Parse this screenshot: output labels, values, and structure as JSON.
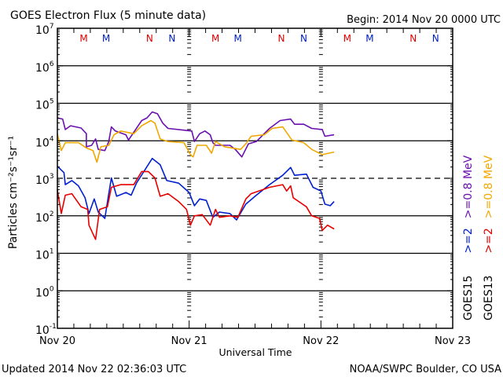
{
  "chart_data": {
    "type": "line",
    "title": "GOES Electron Flux (5 minute data)",
    "begin_label": "Begin: 2014 Nov 20 0000 UTC",
    "xlabel": "Universal Time",
    "ylabel": "Particles cm⁻²s⁻¹sr⁻¹",
    "yscale": "log",
    "ylim_log10": [
      -1,
      7
    ],
    "y_tick_base": "10",
    "y_tick_exponents": [
      "7",
      "6",
      "5",
      "4",
      "3",
      "2",
      "1",
      "0",
      "-1"
    ],
    "xlim_days": [
      0,
      3
    ],
    "x_tick_labels": [
      "Nov 20",
      "Nov 21",
      "Nov 22",
      "Nov 23"
    ],
    "dashed_threshold_log10": 3,
    "grid": "horizontal lines at each decade",
    "markers": [
      {
        "label": "M",
        "color": "#e00000",
        "day_offset": 0.2
      },
      {
        "label": "M",
        "color": "#0020c0",
        "day_offset": 0.37
      },
      {
        "label": "N",
        "color": "#e00000",
        "day_offset": 0.7
      },
      {
        "label": "N",
        "color": "#0020c0",
        "day_offset": 0.87
      }
    ],
    "legend": {
      "columns": [
        {
          "satellite": "GOES15",
          "items": [
            {
              "label": ">=2",
              "color": "#0020d0"
            },
            {
              "label": ">=0.8 MeV",
              "color": "#6a10b0"
            }
          ]
        },
        {
          "satellite": "GOES13",
          "items": [
            {
              "label": ">=2",
              "color": "#e00000"
            },
            {
              "label": ">=0.8 MeV",
              "color": "#f0a800"
            }
          ]
        }
      ],
      "placement": "right, vertical"
    },
    "series": [
      {
        "name": "GOES15 >=0.8 MeV",
        "color": "#6a10b0",
        "x_days": [
          0,
          0.04,
          0.06,
          0.1,
          0.18,
          0.22,
          0.22,
          0.26,
          0.29,
          0.31,
          0.36,
          0.39,
          0.41,
          0.44,
          0.52,
          0.54,
          0.64,
          0.68,
          0.72,
          0.76,
          0.8,
          0.84,
          1.02,
          1.04,
          1.08,
          1.12,
          1.16,
          1.18,
          1.2,
          1.31,
          1.35,
          1.4,
          1.45,
          1.51,
          1.61,
          1.69,
          1.77,
          1.8,
          1.87,
          1.93,
          2.01,
          2.03,
          2.1
        ],
        "log10_flux": [
          4.61,
          4.58,
          4.3,
          4.4,
          4.34,
          4.19,
          3.84,
          3.88,
          4.05,
          3.77,
          3.74,
          3.98,
          4.37,
          4.26,
          4.16,
          4.02,
          4.54,
          4.61,
          4.77,
          4.72,
          4.47,
          4.33,
          4.26,
          3.98,
          4.19,
          4.26,
          4.16,
          3.95,
          3.88,
          3.88,
          3.77,
          3.57,
          3.92,
          3.98,
          4.33,
          4.54,
          4.58,
          4.44,
          4.44,
          4.33,
          4.3,
          4.12,
          4.16
        ]
      },
      {
        "name": "GOES13 >=0.8 MeV",
        "color": "#f0a800",
        "x_days": [
          0,
          0.03,
          0.06,
          0.16,
          0.22,
          0.27,
          0.3,
          0.33,
          0.39,
          0.43,
          0.48,
          0.58,
          0.64,
          0.71,
          0.74,
          0.78,
          0.84,
          0.96,
          1.01,
          1.03,
          1.06,
          1.13,
          1.17,
          1.2,
          1.27,
          1.39,
          1.43,
          1.47,
          1.57,
          1.63,
          1.71,
          1.78,
          1.87,
          1.93,
          2.01,
          2.1
        ],
        "log10_flux": [
          4.19,
          3.74,
          3.95,
          3.95,
          3.81,
          3.74,
          3.43,
          3.84,
          3.88,
          4.16,
          4.26,
          4.19,
          4.4,
          4.54,
          4.47,
          4.05,
          3.98,
          3.95,
          3.63,
          3.57,
          3.88,
          3.88,
          3.67,
          3.98,
          3.84,
          3.77,
          3.92,
          4.12,
          4.16,
          4.33,
          4.37,
          4.02,
          3.95,
          3.77,
          3.63,
          3.7
        ]
      },
      {
        "name": "GOES15 >=2 MeV",
        "color": "#0020d0",
        "x_days": [
          0,
          0.05,
          0.06,
          0.11,
          0.16,
          0.21,
          0.24,
          0.28,
          0.31,
          0.36,
          0.39,
          0.41,
          0.45,
          0.52,
          0.56,
          0.6,
          0.72,
          0.78,
          0.83,
          0.92,
          1.0,
          1.04,
          1.08,
          1.13,
          1.18,
          1.23,
          1.31,
          1.36,
          1.43,
          1.51,
          1.61,
          1.71,
          1.77,
          1.8,
          1.89,
          1.94,
          2.0,
          2.03,
          2.07,
          2.1
        ],
        "log10_flux": [
          3.32,
          3.15,
          2.83,
          2.94,
          2.8,
          2.48,
          2.06,
          2.45,
          2.1,
          1.93,
          2.59,
          3.01,
          2.52,
          2.62,
          2.55,
          2.87,
          3.53,
          3.36,
          2.94,
          2.87,
          2.62,
          2.27,
          2.45,
          2.41,
          1.96,
          2.1,
          2.06,
          1.89,
          2.31,
          2.55,
          2.83,
          3.08,
          3.29,
          3.08,
          3.11,
          2.76,
          2.66,
          2.31,
          2.27,
          2.38
        ]
      },
      {
        "name": "GOES13 >=2 MeV",
        "color": "#e80000",
        "x_days": [
          0,
          0.03,
          0.06,
          0.11,
          0.18,
          0.23,
          0.24,
          0.29,
          0.32,
          0.38,
          0.41,
          0.48,
          0.58,
          0.64,
          0.69,
          0.74,
          0.78,
          0.84,
          0.92,
          0.98,
          1.01,
          1.04,
          1.1,
          1.16,
          1.2,
          1.23,
          1.31,
          1.37,
          1.43,
          1.47,
          1.61,
          1.71,
          1.74,
          1.77,
          1.79,
          1.89,
          1.93,
          1.99,
          2.01,
          2.05,
          2.1
        ],
        "log10_flux": [
          2.69,
          2.06,
          2.55,
          2.59,
          2.24,
          2.17,
          1.75,
          1.37,
          2.17,
          2.24,
          2.76,
          2.83,
          2.83,
          3.18,
          3.18,
          3.01,
          2.52,
          2.59,
          2.38,
          2.17,
          1.75,
          2.0,
          2.03,
          1.75,
          2.17,
          1.96,
          2.0,
          1.96,
          2.45,
          2.59,
          2.76,
          2.83,
          2.66,
          2.8,
          2.48,
          2.24,
          2.0,
          1.93,
          1.61,
          1.75,
          1.65
        ]
      }
    ]
  },
  "footer": {
    "updated": "Updated 2014 Nov 22 02:36:03 UTC",
    "credit": "NOAA/SWPC Boulder, CO USA"
  }
}
